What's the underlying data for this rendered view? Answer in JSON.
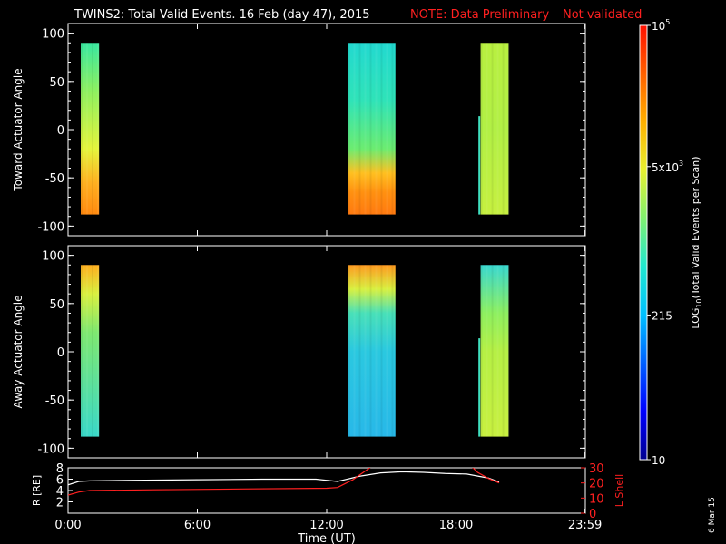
{
  "header": {
    "title": "TWINS2: Total Valid Events. 16 Feb (day  47), 2015",
    "note": "NOTE: Data Preliminary – Not validated"
  },
  "footer": {
    "stamp": "6 Mar 15"
  },
  "colors": {
    "frame": "#ffffff",
    "background": "#000000",
    "note": "#ff2020",
    "r_line": "#ffffff",
    "l_line": "#ff2020"
  },
  "chart_data": [
    {
      "type": "heatmap",
      "id": "toward",
      "ylabel": "Toward Actuator Angle",
      "xlim": [
        0,
        24
      ],
      "ylim": [
        -110,
        110
      ],
      "yticks": [
        100,
        50,
        0,
        -50,
        -100
      ],
      "ytick_labels": [
        "100",
        "50",
        "0",
        "-50",
        "-100"
      ],
      "angle_range": [
        -88,
        90
      ],
      "blocks": [
        {
          "t_start": 0.0,
          "t_end": 0.85,
          "stops": [
            [
              90,
              "#39e7a0"
            ],
            [
              40,
              "#8ef060"
            ],
            [
              -20,
              "#e5f53c"
            ],
            [
              -55,
              "#ffb020"
            ],
            [
              -88,
              "#ff8a10"
            ]
          ]
        },
        {
          "t_start": 12.4,
          "t_end": 14.6,
          "stops": [
            [
              90,
              "#22d9d0"
            ],
            [
              30,
              "#2fe3b8"
            ],
            [
              -20,
              "#6cec70"
            ],
            [
              -45,
              "#ffc020"
            ],
            [
              -65,
              "#ff9010"
            ],
            [
              -88,
              "#ff7a10"
            ]
          ]
        },
        {
          "t_start": 18.55,
          "t_end": 19.85,
          "stops": [
            [
              90,
              "#b8f040"
            ],
            [
              0,
              "#b2f045"
            ],
            [
              -88,
              "#c6f040"
            ]
          ]
        }
      ],
      "spikes": [
        {
          "t": 18.45,
          "from": -88,
          "to": 14
        }
      ]
    },
    {
      "type": "heatmap",
      "id": "away",
      "ylabel": "Away Actuator Angle",
      "xlim": [
        0,
        24
      ],
      "ylim": [
        -110,
        110
      ],
      "yticks": [
        100,
        50,
        0,
        -50,
        -100
      ],
      "ytick_labels": [
        "100",
        "50",
        "0",
        "-50",
        "-100"
      ],
      "angle_range": [
        -88,
        90
      ],
      "blocks": [
        {
          "t_start": 0.0,
          "t_end": 0.85,
          "stops": [
            [
              90,
              "#ffb020"
            ],
            [
              60,
              "#d9f040"
            ],
            [
              20,
              "#7ee870"
            ],
            [
              -88,
              "#3ad8c8"
            ]
          ]
        },
        {
          "t_start": 12.4,
          "t_end": 14.6,
          "stops": [
            [
              90,
              "#ff9a20"
            ],
            [
              65,
              "#d8f040"
            ],
            [
              40,
              "#48e0b8"
            ],
            [
              0,
              "#2ac8e0"
            ],
            [
              -88,
              "#28b8e8"
            ]
          ]
        },
        {
          "t_start": 18.55,
          "t_end": 19.85,
          "stops": [
            [
              90,
              "#3ad8d0"
            ],
            [
              40,
              "#8ef060"
            ],
            [
              0,
              "#b6f045"
            ],
            [
              -88,
              "#c8f040"
            ]
          ]
        }
      ],
      "spikes": [
        {
          "t": 18.45,
          "from": -88,
          "to": 14
        }
      ]
    },
    {
      "type": "line",
      "id": "orbit",
      "ylabel_left": "R [RE]",
      "ylabel_right": "L Shell",
      "xlabel": "Time (UT)",
      "xticks": [
        0,
        6,
        12,
        18,
        23.983
      ],
      "xtick_labels": [
        "0:00",
        "6:00",
        "12:00",
        "18:00",
        "23:59"
      ],
      "ylim_left": [
        0,
        8
      ],
      "yticks_left": [
        "0",
        "2",
        "4",
        "6",
        "8"
      ],
      "ylim_right": [
        0,
        30
      ],
      "yticks_right": [
        "0",
        "10",
        "20",
        "30"
      ],
      "series": [
        {
          "name": "R",
          "axis": "left",
          "color": "#ffffff",
          "x": [
            0.0,
            0.5,
            1.0,
            3.0,
            6.0,
            9.0,
            11.5,
            12.5,
            13.5,
            14.5,
            15.5,
            16.5,
            17.5,
            18.5,
            19.5,
            20.0
          ],
          "y": [
            5.0,
            5.6,
            5.7,
            5.8,
            5.9,
            6.0,
            6.0,
            5.6,
            6.5,
            7.1,
            7.3,
            7.2,
            7.0,
            6.9,
            6.2,
            5.5
          ]
        },
        {
          "name": "L",
          "axis": "right",
          "color": "#ff2020",
          "x": [
            0.0,
            0.5,
            1.0,
            4.0,
            8.0,
            12.0,
            12.5,
            13.2,
            14.0,
            14.5
          ],
          "y": [
            12,
            14,
            15,
            15.5,
            16,
            16.5,
            17,
            22,
            30,
            36
          ]
        },
        {
          "name": "L2",
          "axis": "right",
          "color": "#ff2020",
          "x": [
            18.5,
            19.0,
            19.5,
            20.0
          ],
          "y": [
            34,
            27,
            23,
            20
          ]
        }
      ]
    }
  ],
  "colorbar": {
    "label": "LOG10(Total Valid Events per Scan)",
    "label_main": "LOG",
    "label_sub": "10",
    "label_rest": "(Total Valid  Events per Scan)",
    "tick_labels": [
      {
        "text": "10",
        "value": 10
      },
      {
        "text": "215",
        "value": 215
      },
      {
        "text": "5x10",
        "sup": "3",
        "value": 5000
      },
      {
        "text": "10",
        "sup": "5",
        "value": 100000
      }
    ],
    "range": [
      10,
      100000
    ],
    "scale": "log",
    "stops": [
      "#000090",
      "#0000ff",
      "#0060ff",
      "#00c0ff",
      "#20e8d0",
      "#80f070",
      "#e8f030",
      "#ffb000",
      "#ff6000",
      "#ff1000"
    ]
  }
}
